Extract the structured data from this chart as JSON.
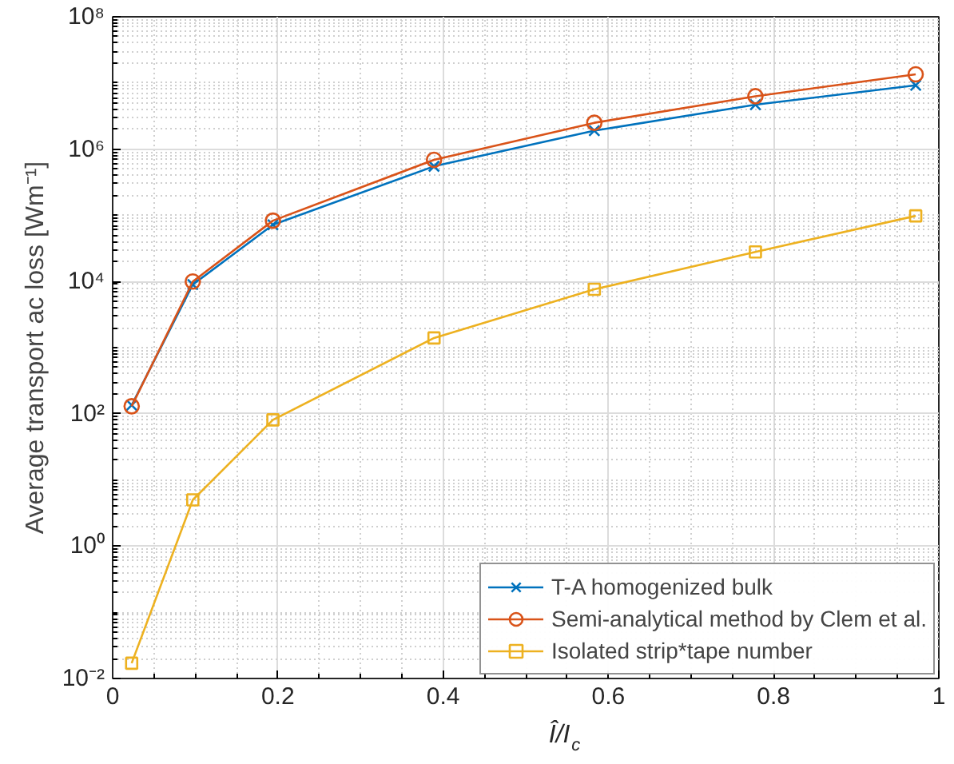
{
  "chart_data": {
    "type": "line",
    "xlabel": "Î/I$_{c}$",
    "ylabel": "Average transport ac loss [Wm⁻¹]",
    "x": [
      0.023,
      0.097,
      0.194,
      0.389,
      0.583,
      0.778,
      0.972
    ],
    "series": [
      {
        "name": "T-A homogenized bulk",
        "color": "#0072bd",
        "marker": "cross",
        "values": [
          135,
          9000,
          72000,
          550000,
          1900000,
          4700000,
          9200000
        ]
      },
      {
        "name": "Semi-analytical method by Clem et al.",
        "color": "#d95319",
        "marker": "circle",
        "values": [
          130,
          10000,
          83000,
          690000,
          2500000,
          6300000,
          13500000
        ]
      },
      {
        "name": "Isolated strip*tape number",
        "color": "#edb120",
        "marker": "square",
        "values": [
          0.017,
          5,
          81,
          1400,
          7600,
          28000,
          98000
        ]
      }
    ],
    "xlim": [
      0,
      1
    ],
    "xticks": [
      0,
      0.2,
      0.4,
      0.6,
      0.8,
      1
    ],
    "ylim": [
      0.01,
      100000000
    ],
    "log": true,
    "yticks": [
      {
        "value": 0.01,
        "label": "10⁻²"
      },
      {
        "value": 1,
        "label": "10⁰"
      },
      {
        "value": 100,
        "label": "10²"
      },
      {
        "value": 10000,
        "label": "10⁴"
      },
      {
        "value": 1000000,
        "label": "10⁶"
      },
      {
        "value": 100000000,
        "label": "10⁸"
      }
    ],
    "grid": true,
    "legend": "bottom right"
  }
}
